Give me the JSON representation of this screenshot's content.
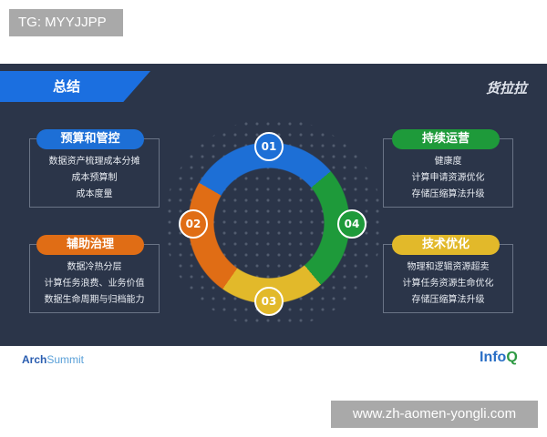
{
  "watermark_top": "TG: MYYJJPP",
  "watermark_bottom": "www.zh-aomen-yongli.com",
  "slide": {
    "title": "总结",
    "brand": "货拉拉",
    "sections": [
      {
        "num": "01",
        "title": "预算和管控",
        "color": "#1d6fd6",
        "items": [
          "数据资产梳理成本分摊",
          "成本预算制",
          "成本度量"
        ]
      },
      {
        "num": "02",
        "title": "辅助治理",
        "color": "#e06d15",
        "items": [
          "数据冷热分层",
          "计算任务浪费、业务价值",
          "数据生命周期与归档能力"
        ]
      },
      {
        "num": "03",
        "title": "技术优化",
        "color": "#e2b92a",
        "items": [
          "物理和逻辑资源超卖",
          "计算任务资源生命优化",
          "存储压缩算法升级"
        ]
      },
      {
        "num": "04",
        "title": "持续运营",
        "color": "#1e9a3a",
        "items": [
          "健康度",
          "计算申请资源优化",
          "存储压缩算法升级"
        ]
      }
    ]
  },
  "footer": {
    "left_logo": "ArchSummit",
    "left_logo_a": "Arch",
    "left_logo_b": "Summit",
    "right_logo_a": "Info",
    "right_logo_b": "Q"
  }
}
